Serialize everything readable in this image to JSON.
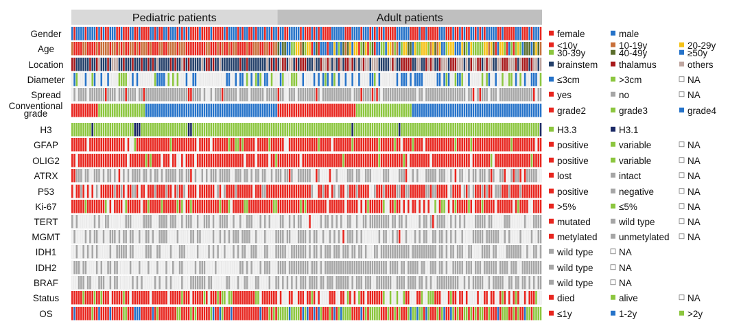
{
  "chart_data": {
    "type": "heatmap",
    "title": "",
    "groups": [
      "Pediatric patients",
      "Adult patients"
    ],
    "rows": [
      {
        "id": "gender",
        "label": "Gender",
        "fill": "red-blue-alt",
        "categories": [
          {
            "label": "female",
            "color": "#e8261f"
          },
          {
            "label": "male",
            "color": "#2673c9"
          }
        ]
      },
      {
        "id": "age",
        "label": "Age",
        "fill": "age",
        "categories": [
          {
            "label": "<10y",
            "color": "#e8261f"
          },
          {
            "label": "10-19y",
            "color": "#c8703a"
          },
          {
            "label": "20-29y",
            "color": "#f5c218"
          },
          {
            "label": "30-39y",
            "color": "#8cc63f"
          },
          {
            "label": "40-49y",
            "color": "#5b6e2c"
          },
          {
            "label": "≥50y",
            "color": "#2673c9"
          }
        ]
      },
      {
        "id": "location",
        "label": "Location",
        "fill": "location",
        "categories": [
          {
            "label": "brainstem",
            "color": "#24406a"
          },
          {
            "label": "thalamus",
            "color": "#a8181a"
          },
          {
            "label": "others",
            "color": "#bfa7a1"
          }
        ]
      },
      {
        "id": "diameter",
        "label": "Diameter",
        "fill": "diameter",
        "categories": [
          {
            "label": "≤3cm",
            "color": "#2673c9"
          },
          {
            "label": ">3cm",
            "color": "#8cc63f"
          },
          {
            "label": "NA",
            "color": "#f2f2f2"
          }
        ]
      },
      {
        "id": "spread",
        "label": "Spread",
        "fill": "spread",
        "categories": [
          {
            "label": "yes",
            "color": "#e8261f"
          },
          {
            "label": "no",
            "color": "#a6a6a6"
          },
          {
            "label": "NA",
            "color": "#f2f2f2"
          }
        ]
      },
      {
        "id": "grade",
        "label": "Conventional grade",
        "label_lines": [
          "Conventional",
          "grade"
        ],
        "fill": "grade",
        "categories": [
          {
            "label": "grade2",
            "color": "#e8261f"
          },
          {
            "label": "grade3",
            "color": "#8cc63f"
          },
          {
            "label": "grade4",
            "color": "#2673c9"
          }
        ]
      },
      {
        "id": "h3",
        "label": "H3",
        "fill": "h3",
        "categories": [
          {
            "label": "H3.3",
            "color": "#8cc63f"
          },
          {
            "label": "H3.1",
            "color": "#1c2a66"
          }
        ]
      },
      {
        "id": "gfap",
        "label": "GFAP",
        "fill": "mostly-red",
        "categories": [
          {
            "label": "positive",
            "color": "#e8261f"
          },
          {
            "label": "variable",
            "color": "#8cc63f"
          },
          {
            "label": "NA",
            "color": "#f2f2f2"
          }
        ]
      },
      {
        "id": "olig2",
        "label": "OLIG2",
        "fill": "mostly-red",
        "categories": [
          {
            "label": "positive",
            "color": "#e8261f"
          },
          {
            "label": "variable",
            "color": "#8cc63f"
          },
          {
            "label": "NA",
            "color": "#f2f2f2"
          }
        ]
      },
      {
        "id": "atrx",
        "label": "ATRX",
        "fill": "atrx",
        "categories": [
          {
            "label": "lost",
            "color": "#e8261f"
          },
          {
            "label": "intact",
            "color": "#a6a6a6"
          },
          {
            "label": "NA",
            "color": "#f2f2f2"
          }
        ]
      },
      {
        "id": "p53",
        "label": "P53",
        "fill": "p53",
        "categories": [
          {
            "label": "positive",
            "color": "#e8261f"
          },
          {
            "label": "negative",
            "color": "#a6a6a6"
          },
          {
            "label": "NA",
            "color": "#f2f2f2"
          }
        ]
      },
      {
        "id": "ki67",
        "label": "Ki-67",
        "fill": "ki67",
        "categories": [
          {
            "label": ">5%",
            "color": "#e8261f"
          },
          {
            "label": "≤5%",
            "color": "#8cc63f"
          },
          {
            "label": "NA",
            "color": "#f2f2f2"
          }
        ]
      },
      {
        "id": "tert",
        "label": "TERT",
        "fill": "tert",
        "categories": [
          {
            "label": "mutated",
            "color": "#e8261f"
          },
          {
            "label": "wild type",
            "color": "#a6a6a6"
          },
          {
            "label": "NA",
            "color": "#f2f2f2"
          }
        ]
      },
      {
        "id": "mgmt",
        "label": "MGMT",
        "fill": "tert",
        "categories": [
          {
            "label": "metylated",
            "color": "#e8261f"
          },
          {
            "label": "unmetylated",
            "color": "#a6a6a6"
          },
          {
            "label": "NA",
            "color": "#f2f2f2"
          }
        ]
      },
      {
        "id": "idh1",
        "label": "IDH1",
        "fill": "grey-na",
        "categories": [
          {
            "label": "wild type",
            "color": "#a6a6a6"
          },
          {
            "label": "NA",
            "color": "#f2f2f2"
          }
        ]
      },
      {
        "id": "idh2",
        "label": "IDH2",
        "fill": "grey-na",
        "categories": [
          {
            "label": "wild type",
            "color": "#a6a6a6"
          },
          {
            "label": "NA",
            "color": "#f2f2f2"
          }
        ]
      },
      {
        "id": "braf",
        "label": "BRAF",
        "fill": "grey-na",
        "categories": [
          {
            "label": "wild type",
            "color": "#a6a6a6"
          },
          {
            "label": "NA",
            "color": "#f2f2f2"
          }
        ]
      },
      {
        "id": "status",
        "label": "Status",
        "fill": "status",
        "categories": [
          {
            "label": "died",
            "color": "#e8261f"
          },
          {
            "label": "alive",
            "color": "#8cc63f"
          },
          {
            "label": "NA",
            "color": "#f2f2f2"
          }
        ]
      },
      {
        "id": "os",
        "label": "OS",
        "fill": "os",
        "categories": [
          {
            "label": "≤1y",
            "color": "#e8261f"
          },
          {
            "label": "1-2y",
            "color": "#2673c9"
          },
          {
            "label": ">2y",
            "color": "#8cc63f"
          }
        ]
      }
    ],
    "colors": {
      "header_pediatric": "#d9d9d9",
      "header_adult": "#bfbfbf",
      "na_box": "#f2f2f2"
    }
  }
}
